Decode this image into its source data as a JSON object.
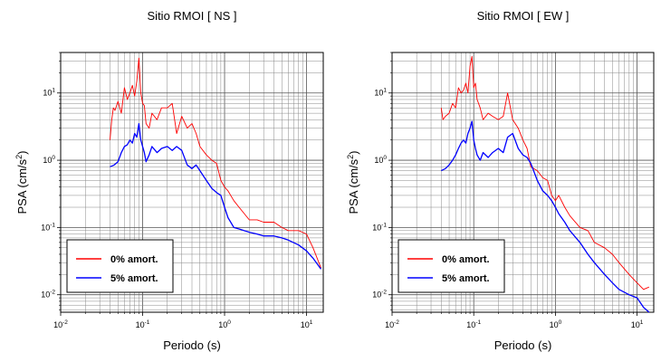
{
  "chart_data": [
    {
      "type": "line",
      "title": "Sitio RMOI [ NS ]",
      "xlabel": "Periodo (s)",
      "ylabel": "PSA (cm/s",
      "ylabel_sup": "2",
      "ylabel_close": ")",
      "xscale": "log",
      "yscale": "log",
      "xlim": [
        0.01,
        16
      ],
      "ylim": [
        0.0055,
        40
      ],
      "grid": true,
      "legend_position": "bottom-left",
      "x_ticks": [
        {
          "value": 0.01,
          "base": "10",
          "exp": "-2"
        },
        {
          "value": 0.1,
          "base": "10",
          "exp": "-1"
        },
        {
          "value": 1,
          "base": "10",
          "exp": "0"
        },
        {
          "value": 10,
          "base": "10",
          "exp": "1"
        }
      ],
      "y_ticks": [
        {
          "value": 0.01,
          "base": "10",
          "exp": "-2"
        },
        {
          "value": 0.1,
          "base": "10",
          "exp": "-1"
        },
        {
          "value": 1,
          "base": "10",
          "exp": "0"
        },
        {
          "value": 10,
          "base": "10",
          "exp": "1"
        }
      ],
      "series": [
        {
          "name": "0% amort.",
          "color": "#ff0000",
          "x": [
            0.04,
            0.042,
            0.044,
            0.046,
            0.05,
            0.055,
            0.06,
            0.065,
            0.07,
            0.075,
            0.08,
            0.085,
            0.09,
            0.095,
            0.1,
            0.105,
            0.11,
            0.12,
            0.13,
            0.15,
            0.17,
            0.2,
            0.23,
            0.26,
            0.3,
            0.35,
            0.4,
            0.45,
            0.5,
            0.6,
            0.7,
            0.8,
            0.9,
            1.0,
            1.1,
            1.3,
            1.5,
            2.0,
            2.5,
            3.0,
            4.0,
            5.0,
            6.0,
            8.0,
            10.0,
            12.0,
            15.0
          ],
          "y": [
            2.0,
            4.0,
            6.0,
            5.5,
            7.5,
            5.0,
            12.0,
            8.0,
            10.0,
            13.0,
            9.0,
            15.0,
            33.0,
            10.0,
            7.0,
            6.5,
            3.5,
            3.0,
            5.0,
            4.0,
            6.0,
            6.0,
            7.0,
            2.5,
            4.5,
            3.0,
            3.5,
            2.5,
            1.6,
            1.2,
            1.0,
            0.9,
            0.5,
            0.4,
            0.35,
            0.25,
            0.2,
            0.13,
            0.13,
            0.12,
            0.12,
            0.1,
            0.09,
            0.09,
            0.08,
            0.05,
            0.025
          ]
        },
        {
          "name": "5% amort.",
          "color": "#0000ff",
          "x": [
            0.04,
            0.045,
            0.05,
            0.055,
            0.06,
            0.065,
            0.07,
            0.075,
            0.08,
            0.085,
            0.09,
            0.095,
            0.1,
            0.105,
            0.11,
            0.12,
            0.13,
            0.15,
            0.17,
            0.2,
            0.23,
            0.26,
            0.3,
            0.35,
            0.4,
            0.45,
            0.5,
            0.6,
            0.7,
            0.8,
            0.9,
            1.0,
            1.1,
            1.3,
            1.5,
            2.0,
            2.5,
            3.0,
            4.0,
            5.0,
            6.0,
            8.0,
            10.0,
            12.0,
            15.0
          ],
          "y": [
            0.8,
            0.85,
            0.95,
            1.3,
            1.6,
            1.7,
            2.0,
            1.8,
            2.5,
            2.2,
            3.5,
            2.0,
            1.6,
            1.3,
            0.95,
            1.2,
            1.6,
            1.3,
            1.5,
            1.6,
            1.4,
            1.6,
            1.4,
            0.85,
            0.75,
            0.85,
            0.7,
            0.5,
            0.38,
            0.33,
            0.3,
            0.2,
            0.14,
            0.1,
            0.095,
            0.085,
            0.08,
            0.075,
            0.075,
            0.07,
            0.065,
            0.055,
            0.045,
            0.035,
            0.024
          ]
        }
      ]
    },
    {
      "type": "line",
      "title": "Sitio RMOI [ EW ]",
      "xlabel": "Periodo (s)",
      "ylabel": "PSA (cm/s",
      "ylabel_sup": "2",
      "ylabel_close": ")",
      "xscale": "log",
      "yscale": "log",
      "xlim": [
        0.01,
        16
      ],
      "ylim": [
        0.0055,
        40
      ],
      "grid": true,
      "legend_position": "bottom-left",
      "x_ticks": [
        {
          "value": 0.01,
          "base": "10",
          "exp": "-2"
        },
        {
          "value": 0.1,
          "base": "10",
          "exp": "-1"
        },
        {
          "value": 1,
          "base": "10",
          "exp": "0"
        },
        {
          "value": 10,
          "base": "10",
          "exp": "1"
        }
      ],
      "y_ticks": [
        {
          "value": 0.01,
          "base": "10",
          "exp": "-2"
        },
        {
          "value": 0.1,
          "base": "10",
          "exp": "-1"
        },
        {
          "value": 1,
          "base": "10",
          "exp": "0"
        },
        {
          "value": 10,
          "base": "10",
          "exp": "1"
        }
      ],
      "series": [
        {
          "name": "0% amort.",
          "color": "#ff0000",
          "x": [
            0.04,
            0.042,
            0.045,
            0.05,
            0.055,
            0.06,
            0.065,
            0.07,
            0.075,
            0.08,
            0.085,
            0.09,
            0.095,
            0.1,
            0.105,
            0.11,
            0.12,
            0.13,
            0.15,
            0.17,
            0.2,
            0.23,
            0.26,
            0.3,
            0.35,
            0.4,
            0.45,
            0.5,
            0.6,
            0.7,
            0.8,
            0.9,
            1.0,
            1.1,
            1.3,
            1.5,
            2.0,
            2.5,
            3.0,
            4.0,
            5.0,
            6.0,
            8.0,
            10.0,
            12.0,
            14.0
          ],
          "y": [
            6.0,
            4.0,
            4.5,
            5.0,
            7.0,
            6.0,
            12.0,
            10.0,
            11.0,
            14.0,
            10.0,
            25.0,
            35.0,
            12.0,
            14.0,
            8.0,
            6.0,
            4.0,
            5.0,
            4.5,
            4.0,
            4.5,
            10.0,
            4.0,
            3.0,
            2.0,
            1.5,
            0.8,
            0.7,
            0.55,
            0.5,
            0.3,
            0.25,
            0.3,
            0.2,
            0.15,
            0.1,
            0.09,
            0.06,
            0.05,
            0.04,
            0.03,
            0.02,
            0.015,
            0.012,
            0.013
          ]
        },
        {
          "name": "5% amort.",
          "color": "#0000ff",
          "x": [
            0.04,
            0.045,
            0.05,
            0.055,
            0.06,
            0.065,
            0.07,
            0.075,
            0.08,
            0.085,
            0.09,
            0.095,
            0.1,
            0.105,
            0.11,
            0.12,
            0.13,
            0.15,
            0.17,
            0.2,
            0.23,
            0.26,
            0.3,
            0.35,
            0.4,
            0.45,
            0.5,
            0.6,
            0.7,
            0.8,
            0.9,
            1.0,
            1.1,
            1.3,
            1.5,
            2.0,
            2.5,
            3.0,
            4.0,
            5.0,
            6.0,
            8.0,
            10.0,
            12.0,
            14.0
          ],
          "y": [
            0.7,
            0.75,
            0.85,
            1.0,
            1.2,
            1.5,
            1.8,
            2.0,
            1.8,
            2.5,
            3.0,
            3.8,
            2.0,
            1.5,
            1.2,
            1.0,
            1.3,
            1.1,
            1.3,
            1.5,
            1.3,
            2.2,
            2.5,
            1.5,
            1.2,
            1.1,
            0.9,
            0.5,
            0.35,
            0.3,
            0.25,
            0.2,
            0.16,
            0.12,
            0.09,
            0.06,
            0.04,
            0.03,
            0.02,
            0.015,
            0.012,
            0.01,
            0.009,
            0.0065,
            0.0055
          ]
        }
      ]
    }
  ]
}
